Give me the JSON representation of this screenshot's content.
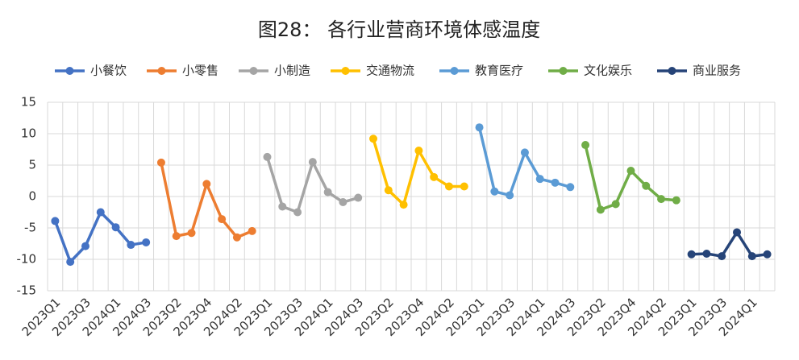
{
  "chart_data": {
    "type": "line",
    "title": "图28： 各行业营商环境体感温度",
    "categories": [
      "2023Q1",
      null,
      "2023Q3",
      null,
      "2024Q1",
      null,
      "2024Q3",
      null,
      "2023Q2",
      null,
      "2023Q4",
      null,
      "2024Q2",
      null,
      "2023Q1",
      null,
      "2023Q3",
      null,
      "2024Q1",
      null,
      "2024Q3",
      null,
      "2023Q2",
      null,
      "2023Q4",
      null,
      "2024Q2",
      null,
      "2023Q1",
      null,
      "2023Q3",
      null,
      "2024Q1",
      null,
      "2024Q3",
      null,
      "2023Q2",
      null,
      "2023Q4",
      null,
      "2024Q2",
      null,
      "2023Q1",
      null,
      "2023Q3",
      null,
      "2024Q1",
      null
    ],
    "series": [
      {
        "name": "小餐饮",
        "color": "#4472c4",
        "values": [
          -3.9,
          -10.4,
          -7.9,
          -2.5,
          -4.9,
          -7.7,
          -7.3,
          null,
          null,
          null,
          null,
          null,
          null,
          null,
          null,
          null,
          null,
          null,
          null,
          null,
          null,
          null,
          null,
          null,
          null,
          null,
          null,
          null,
          null,
          null,
          null,
          null,
          null,
          null,
          null,
          null,
          null,
          null,
          null,
          null,
          null,
          null,
          null,
          null,
          null,
          null,
          null,
          null
        ]
      },
      {
        "name": "小零售",
        "color": "#ed7d31",
        "values": [
          null,
          null,
          null,
          null,
          null,
          null,
          null,
          5.4,
          -6.3,
          -5.8,
          2.0,
          -3.6,
          -6.5,
          -5.5,
          null,
          null,
          null,
          null,
          null,
          null,
          null,
          null,
          null,
          null,
          null,
          null,
          null,
          null,
          null,
          null,
          null,
          null,
          null,
          null,
          null,
          null,
          null,
          null,
          null,
          null,
          null,
          null,
          null,
          null,
          null,
          null,
          null,
          null
        ]
      },
      {
        "name": "小制造",
        "color": "#a5a5a5",
        "values": [
          null,
          null,
          null,
          null,
          null,
          null,
          null,
          null,
          null,
          null,
          null,
          null,
          null,
          null,
          6.3,
          -1.6,
          -2.5,
          5.5,
          0.7,
          -0.9,
          -0.2,
          null,
          null,
          null,
          null,
          null,
          null,
          null,
          null,
          null,
          null,
          null,
          null,
          null,
          null,
          null,
          null,
          null,
          null,
          null,
          null,
          null,
          null,
          null,
          null,
          null,
          null,
          null
        ]
      },
      {
        "name": "交通物流",
        "color": "#ffc000",
        "values": [
          null,
          null,
          null,
          null,
          null,
          null,
          null,
          null,
          null,
          null,
          null,
          null,
          null,
          null,
          null,
          null,
          null,
          null,
          null,
          null,
          null,
          9.2,
          1.0,
          -1.3,
          7.3,
          3.1,
          1.6,
          1.6,
          null,
          null,
          null,
          null,
          null,
          null,
          null,
          null,
          null,
          null,
          null,
          null,
          null,
          null,
          null,
          null,
          null,
          null,
          null,
          null
        ]
      },
      {
        "name": "教育医疗",
        "color": "#5b9bd5",
        "values": [
          null,
          null,
          null,
          null,
          null,
          null,
          null,
          null,
          null,
          null,
          null,
          null,
          null,
          null,
          null,
          null,
          null,
          null,
          null,
          null,
          null,
          null,
          null,
          null,
          null,
          null,
          null,
          null,
          11.0,
          0.8,
          0.2,
          7.0,
          2.8,
          2.2,
          1.5,
          null,
          null,
          null,
          null,
          null,
          null,
          null,
          null,
          null,
          null,
          null,
          null,
          null
        ]
      },
      {
        "name": "文化娱乐",
        "color": "#70ad47",
        "values": [
          null,
          null,
          null,
          null,
          null,
          null,
          null,
          null,
          null,
          null,
          null,
          null,
          null,
          null,
          null,
          null,
          null,
          null,
          null,
          null,
          null,
          null,
          null,
          null,
          null,
          null,
          null,
          null,
          null,
          null,
          null,
          null,
          null,
          null,
          null,
          8.2,
          -2.1,
          -1.2,
          4.1,
          1.7,
          -0.4,
          -0.6,
          null,
          null,
          null,
          null,
          null,
          null
        ]
      },
      {
        "name": "商业服务",
        "color": "#264478",
        "values": [
          null,
          null,
          null,
          null,
          null,
          null,
          null,
          null,
          null,
          null,
          null,
          null,
          null,
          null,
          null,
          null,
          null,
          null,
          null,
          null,
          null,
          null,
          null,
          null,
          null,
          null,
          null,
          null,
          null,
          null,
          null,
          null,
          null,
          null,
          null,
          null,
          null,
          null,
          null,
          null,
          null,
          null,
          -9.2,
          -9.1,
          -9.5,
          -5.7,
          -9.5,
          -9.2
        ]
      }
    ],
    "ylim": [
      -15,
      15
    ],
    "yticks": [
      -15,
      -10,
      -5,
      0,
      5,
      10,
      15
    ],
    "grid": true,
    "legend": "top"
  }
}
